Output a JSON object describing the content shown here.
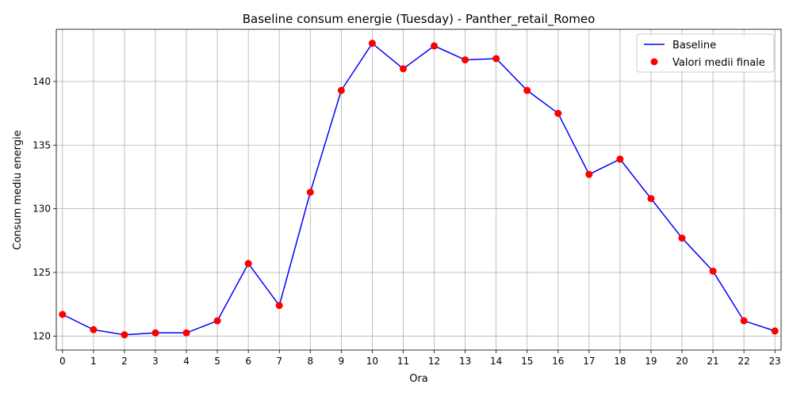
{
  "chart_data": {
    "type": "line",
    "title": "Baseline consum energie (Tuesday) - Panther_retail_Romeo",
    "xlabel": "Ora",
    "ylabel": "Consum mediu energie",
    "x": [
      0,
      1,
      2,
      3,
      4,
      5,
      6,
      7,
      8,
      9,
      10,
      11,
      12,
      13,
      14,
      15,
      16,
      17,
      18,
      19,
      20,
      21,
      22,
      23
    ],
    "x_tick_labels": [
      "0",
      "1",
      "2",
      "3",
      "4",
      "5",
      "6",
      "7",
      "8",
      "9",
      "10",
      "11",
      "12",
      "13",
      "14",
      "15",
      "16",
      "17",
      "18",
      "19",
      "20",
      "21",
      "22",
      "23"
    ],
    "y_ticks": [
      120,
      125,
      130,
      135,
      140
    ],
    "y_tick_labels": [
      "120",
      "125",
      "130",
      "135",
      "140"
    ],
    "xlim": [
      -0.2,
      23.2
    ],
    "ylim": [
      118.9,
      144.1
    ],
    "grid": true,
    "legend_position": "top-right",
    "series": [
      {
        "name": "Baseline",
        "kind": "line",
        "color": "#0000ff",
        "values": [
          121.7,
          120.5,
          120.1,
          120.25,
          120.25,
          121.2,
          125.7,
          122.4,
          131.3,
          139.3,
          143.0,
          141.0,
          142.8,
          141.7,
          141.8,
          139.3,
          137.5,
          132.7,
          133.9,
          130.8,
          127.7,
          125.1,
          121.2,
          120.4
        ]
      },
      {
        "name": "Valori medii finale",
        "kind": "scatter",
        "color": "#ff0000",
        "values": [
          121.7,
          120.5,
          120.1,
          120.25,
          120.25,
          121.2,
          125.7,
          122.4,
          131.3,
          139.3,
          143.0,
          141.0,
          142.8,
          141.7,
          141.8,
          139.3,
          137.5,
          132.7,
          133.9,
          130.8,
          127.7,
          125.1,
          121.2,
          120.4
        ]
      }
    ]
  }
}
